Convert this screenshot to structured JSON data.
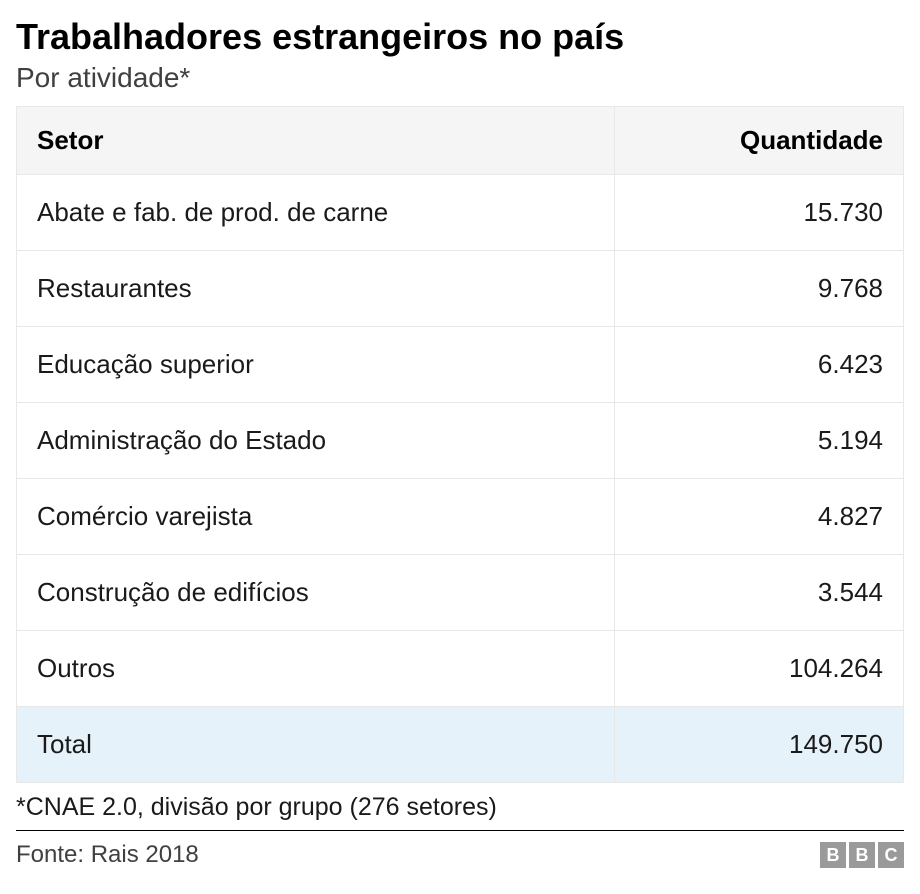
{
  "title": "Trabalhadores estrangeiros no país",
  "subtitle": "Por atividade*",
  "table": {
    "columns": [
      "Setor",
      "Quantidade"
    ],
    "rows": [
      {
        "sector": "Abate e fab. de prod. de carne",
        "quantity": "15.730",
        "is_total": false
      },
      {
        "sector": "Restaurantes",
        "quantity": "9.768",
        "is_total": false
      },
      {
        "sector": "Educação superior",
        "quantity": "6.423",
        "is_total": false
      },
      {
        "sector": "Administração do Estado",
        "quantity": "5.194",
        "is_total": false
      },
      {
        "sector": "Comércio varejista",
        "quantity": "4.827",
        "is_total": false
      },
      {
        "sector": "Construção de edifícios",
        "quantity": "3.544",
        "is_total": false
      },
      {
        "sector": "Outros",
        "quantity": "104.264",
        "is_total": false
      },
      {
        "sector": "Total",
        "quantity": "149.750",
        "is_total": true
      }
    ],
    "header_bg": "#f5f5f5",
    "row_bg": "#ffffff",
    "total_row_bg": "#e6f2fa",
    "border_color": "#e8e8e8",
    "text_color": "#1a1a1a",
    "header_fontsize": 26,
    "body_fontsize": 26
  },
  "footnote": "*CNAE 2.0, divisão por grupo (276 setores)",
  "source": "Fonte: Rais 2018",
  "logo": {
    "letters": [
      "B",
      "B",
      "C"
    ],
    "box_bg": "#9a9a9a",
    "box_fg": "#ffffff"
  },
  "colors": {
    "background": "#ffffff",
    "title": "#000000",
    "subtitle": "#404040",
    "divider": "#000000"
  }
}
